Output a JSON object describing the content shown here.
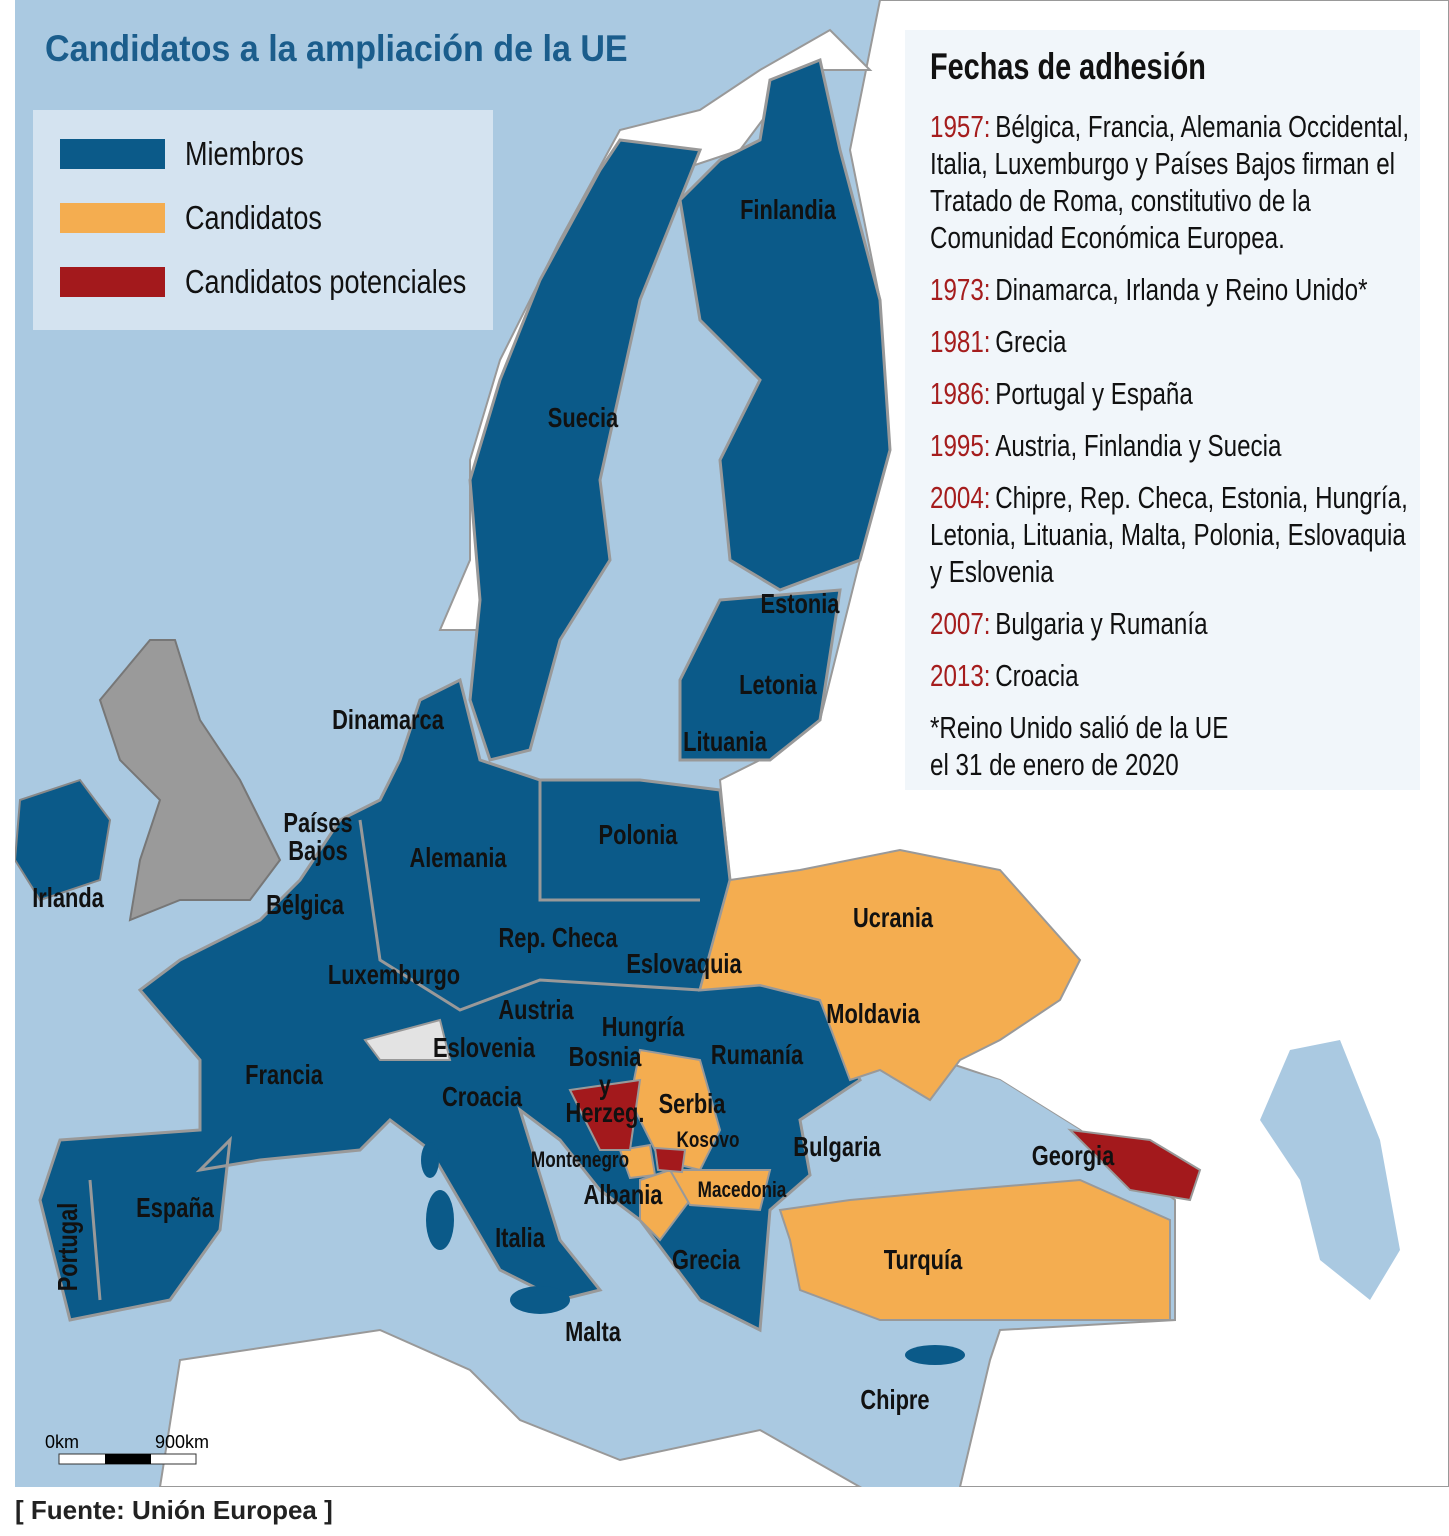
{
  "title": "Candidatos a la ampliación de la UE",
  "colors": {
    "sea": "#aac9e1",
    "land": "#ffffff",
    "members": "#0b5a89",
    "candidates": "#f4ad50",
    "potential_candidates": "#a3191c",
    "former_member": "#9a9a9a",
    "non_member": "#e3e3e3"
  },
  "legend": [
    {
      "label": "Miembros",
      "color": "#0b5a89"
    },
    {
      "label": "Candidatos",
      "color": "#f4ad50"
    },
    {
      "label": "Candidatos potenciales",
      "color": "#a3191c"
    }
  ],
  "panel": {
    "heading": "Fechas de adhesión",
    "entries": [
      {
        "year": "1957:",
        "text": "Bélgica, Francia, Alemania Occidental, Italia, Luxemburgo y Países Bajos firman el Tratado de Roma, constitutivo de la Comunidad Económica Europea."
      },
      {
        "year": "1973:",
        "text": "Dinamarca, Irlanda y Reino Unido*"
      },
      {
        "year": "1981:",
        "text": "Grecia"
      },
      {
        "year": "1986:",
        "text": "Portugal y España"
      },
      {
        "year": "1995:",
        "text": "Austria, Finlandia y Suecia"
      },
      {
        "year": "2004:",
        "text": "Chipre, Rep. Checa, Estonia, Hungría, Letonia, Lituania, Malta, Polonia, Eslovaquia y Eslovenia"
      },
      {
        "year": "2007:",
        "text": "Bulgaria y Rumanía"
      },
      {
        "year": "2013:",
        "text": "Croacia"
      }
    ],
    "note": "*Reino Unido salió de la UE\nel 31 de enero de 2020"
  },
  "map": {
    "labels": [
      "Finlandia",
      "Suecia",
      "Estonia",
      "Letonia",
      "Lituania",
      "Dinamarca",
      "Polonia",
      "Países Bajos",
      "Alemania",
      "Irlanda",
      "Bélgica",
      "Rep. Checa",
      "Eslovaquia",
      "Ucrania",
      "Luxemburgo",
      "Austria",
      "Moldavia",
      "Hungría",
      "Eslovenia",
      "Rumanía",
      "Francia",
      "Bosnia y Herzeg.",
      "Croacia",
      "Serbia",
      "Kosovo",
      "Bulgaria",
      "Georgia",
      "Montenegro",
      "Albania",
      "Macedonia",
      "España",
      "Italia",
      "Turquía",
      "Portugal",
      "Grecia",
      "Malta",
      "Chipre"
    ]
  },
  "scale": {
    "start": "0km",
    "end": "900km"
  },
  "source": "[ Fuente: Unión Europea ]"
}
